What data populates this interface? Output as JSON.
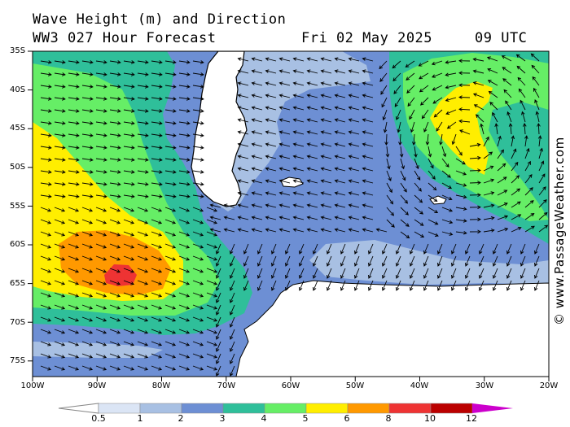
{
  "header": {
    "title": "Wave Height (m) and Direction",
    "model_line": "WW3 027 Hour Forecast",
    "date": "Fri 02 May 2025",
    "time": "09 UTC"
  },
  "map": {
    "lat_labels": [
      "35S",
      "40S",
      "45S",
      "50S",
      "55S",
      "60S",
      "65S",
      "70S",
      "75S"
    ],
    "lon_labels": [
      "100W",
      "90W",
      "80W",
      "70W",
      "60W",
      "50W",
      "40W",
      "30W",
      "20W"
    ]
  },
  "colorbar": {
    "labels": [
      "0.5",
      "1",
      "2",
      "3",
      "4",
      "5",
      "6",
      "8",
      "10",
      "12"
    ],
    "colors": [
      "#ffffff",
      "#dbe5f5",
      "#a8c0e3",
      "#6d8fd4",
      "#2fbf9a",
      "#66ee66",
      "#ffee00",
      "#ff9900",
      "#ee3333",
      "#bb0000",
      "#cc00cc"
    ]
  },
  "credit": "© www.PassageWeather.com",
  "colors": {
    "h1": "#a8c0e3",
    "h2": "#6d8fd4",
    "h3": "#2fbf9a",
    "h4": "#66ee66",
    "h5": "#ffee00",
    "h6": "#ff9900",
    "h8": "#ee3333",
    "land": "#ffffff",
    "ice": "#ffffff"
  }
}
